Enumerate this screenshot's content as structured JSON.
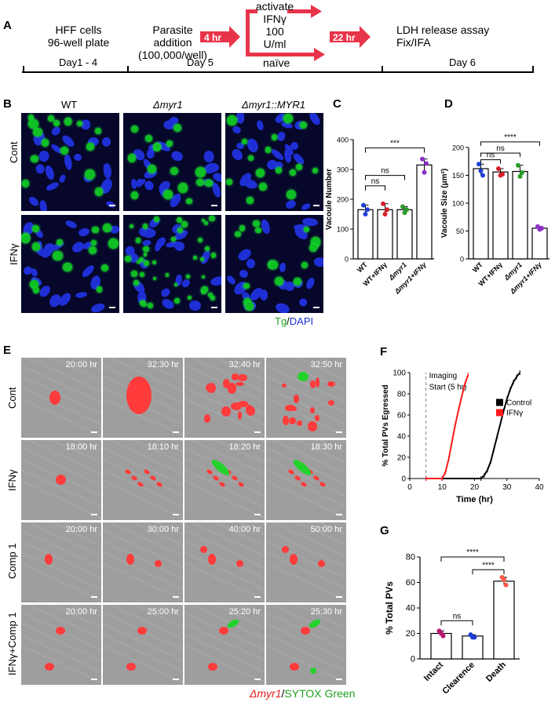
{
  "panelA": {
    "label": "A",
    "step1": [
      "HFF cells",
      "96-well plate"
    ],
    "step2": [
      "Parasite",
      "addition",
      "(100,000/well)"
    ],
    "arrow1": "4 hr",
    "branch_top": [
      "activate",
      "IFNγ",
      "100 U/ml"
    ],
    "branch_bottom": "naïve",
    "arrow2": "22 hr",
    "step3": [
      "LDH release assay",
      "Fix/IFA"
    ],
    "days": [
      "Day1 - 4",
      "Day 5",
      "Day 6"
    ]
  },
  "panelB": {
    "label": "B",
    "columns": [
      "WT",
      "Δmyr1",
      "Δmyr1::MYR1"
    ],
    "rows": [
      "Cont",
      "IFNγ"
    ],
    "legend_tg": "Tg",
    "legend_sep": "/",
    "legend_dapi": "DAPI"
  },
  "panelC": {
    "label": "C",
    "sig": [
      "ns",
      "ns",
      "***"
    ]
  },
  "panelD": {
    "label": "D",
    "sig": [
      "ns",
      "ns",
      "****"
    ]
  },
  "panelE": {
    "label": "E",
    "rows": [
      {
        "name": "Cont",
        "times": [
          "20:00 hr",
          "32:30 hr",
          "32:40 hr",
          "32:50 hr"
        ]
      },
      {
        "name": "IFNγ",
        "times": [
          "18:00 hr",
          "18:10 hr",
          "18:20 hr",
          "18:30 hr"
        ]
      },
      {
        "name": "Comp 1",
        "times": [
          "20:00 hr",
          "30:00 hr",
          "40:00 hr",
          "50:00 hr"
        ]
      },
      {
        "name": "IFNγ+Comp 1",
        "times": [
          "20:00 hr",
          "25:00 hr",
          "25:20 hr",
          "25:30 hr"
        ]
      }
    ],
    "legend_red": "Δmyr1",
    "legend_sep": "/",
    "legend_green": "SYTOX Green"
  },
  "panelF": {
    "label": "F",
    "annotation": [
      "Imaging",
      "Start (5 hr)"
    ]
  },
  "panelG": {
    "label": "G",
    "sig": [
      "ns",
      "****",
      "****"
    ]
  },
  "colors": {
    "wt": "#1f3fd6",
    "ifn": "#d9202a",
    "myr": "#2a9d2a",
    "combo": "#8e2ec8"
  },
  "chart_data": [
    {
      "id": "C",
      "type": "bar",
      "categories": [
        "WT",
        "WT+IFNγ",
        "Δmyr1",
        "Δmyr1+IFNγ"
      ],
      "values": [
        165,
        165,
        165,
        315
      ],
      "points": [
        [
          180,
          150,
          165
        ],
        [
          185,
          150,
          165
        ],
        [
          175,
          155,
          165
        ],
        [
          335,
          290,
          320
        ]
      ],
      "ylabel": "Vacoule Number",
      "ylim": [
        0,
        400
      ],
      "yticks": [
        0,
        100,
        200,
        300,
        400
      ]
    },
    {
      "id": "D",
      "type": "bar",
      "categories": [
        "WT",
        "WT+IFNγ",
        "Δmyr1",
        "Δmyr1+IFNγ"
      ],
      "values": [
        162,
        156,
        157,
        55
      ],
      "points": [
        [
          170,
          158,
          150
        ],
        [
          162,
          150,
          152
        ],
        [
          168,
          148,
          155
        ],
        [
          58,
          53,
          55
        ]
      ],
      "ylabel": "Vacoule Size (μm²)",
      "ylim": [
        0,
        200
      ],
      "yticks": [
        0,
        50,
        100,
        150,
        200
      ]
    },
    {
      "id": "F",
      "type": "line",
      "xlabel": "Time (hr)",
      "ylabel": "% Total PVs Egressed",
      "xlim": [
        0,
        40
      ],
      "ylim": [
        0,
        100
      ],
      "xticks": [
        0,
        10,
        20,
        30,
        40
      ],
      "yticks": [
        0,
        20,
        40,
        60,
        80,
        100
      ],
      "series": [
        {
          "name": "Control",
          "color": "#000000",
          "x": [
            5,
            22,
            23,
            24,
            25,
            26,
            27,
            28,
            29,
            30,
            31,
            32,
            33,
            34
          ],
          "y": [
            0,
            0,
            3,
            8,
            16,
            28,
            40,
            52,
            64,
            75,
            84,
            91,
            96,
            100
          ]
        },
        {
          "name": "IFNγ",
          "color": "#ff1a1a",
          "x": [
            5,
            10,
            11,
            12,
            13,
            14,
            15,
            16,
            17,
            18
          ],
          "y": [
            0,
            0,
            6,
            18,
            34,
            50,
            64,
            77,
            89,
            98
          ]
        }
      ]
    },
    {
      "id": "G",
      "type": "bar",
      "categories": [
        "Intact",
        "Clearence",
        "Death"
      ],
      "values": [
        20,
        18,
        61
      ],
      "points": [
        [
          22,
          20,
          18
        ],
        [
          19,
          17,
          17
        ],
        [
          64,
          62,
          58
        ]
      ],
      "ylabel": "% Total PVs",
      "ylim": [
        0,
        80
      ],
      "yticks": [
        0,
        20,
        40,
        60,
        80
      ]
    }
  ]
}
